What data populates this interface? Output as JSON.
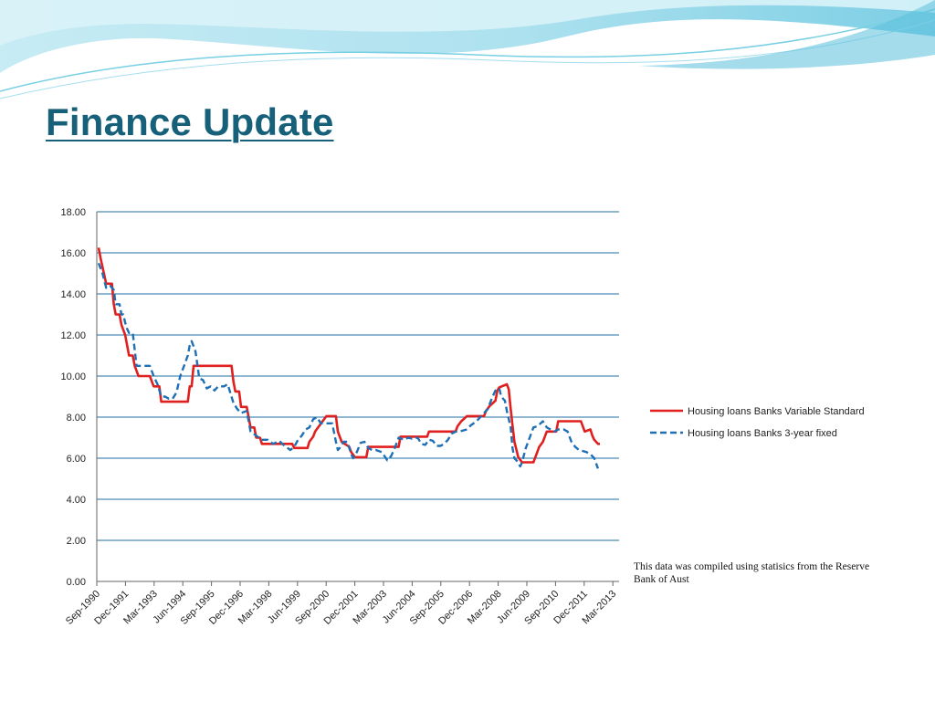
{
  "slide": {
    "title": "Finance Update",
    "note": "This data was compiled using statisics from the Reserve Bank of Aust"
  },
  "colors": {
    "title": "#17607a",
    "gridline": "#1f6fa6",
    "series_variable": "#e0201e",
    "series_fixed": "#1f6fb5",
    "banner_light": "#c8eef6",
    "banner_mid": "#7fd4e8"
  },
  "chart_data": {
    "type": "line",
    "title": "",
    "xlabel": "",
    "ylabel": "",
    "ylim": [
      0,
      18
    ],
    "yticks": [
      "0.00",
      "2.00",
      "4.00",
      "6.00",
      "8.00",
      "10.00",
      "12.00",
      "14.00",
      "16.00",
      "18.00"
    ],
    "xticks": [
      "Sep-1990",
      "Dec-1991",
      "Mar-1993",
      "Jun-1994",
      "Sep-1995",
      "Dec-1996",
      "Mar-1998",
      "Jun-1999",
      "Sep-2000",
      "Dec-2001",
      "Mar-2003",
      "Jun-2004",
      "Sep-2005",
      "Dec-2006",
      "Mar-2008",
      "Jun-2009",
      "Sep-2010",
      "Dec-2011",
      "Mar-2013"
    ],
    "grid": "horizontal",
    "legend_position": "right",
    "x_period": "monthly, Sep-1990 to Sep-2012",
    "series": [
      {
        "name": "Housing loans Banks Variable Standard",
        "style": "solid",
        "points": [
          [
            "1990-09",
            16.25
          ],
          [
            "1990-10",
            15.75
          ],
          [
            "1991-01",
            14.5
          ],
          [
            "1991-04",
            14.5
          ],
          [
            "1991-05",
            13.5
          ],
          [
            "1991-06",
            13.0
          ],
          [
            "1991-08",
            13.0
          ],
          [
            "1991-09",
            12.5
          ],
          [
            "1991-11",
            12.0
          ],
          [
            "1992-01",
            11.0
          ],
          [
            "1992-03",
            11.0
          ],
          [
            "1992-04",
            10.5
          ],
          [
            "1992-06",
            10.0
          ],
          [
            "1992-12",
            10.0
          ],
          [
            "1993-02",
            9.5
          ],
          [
            "1993-05",
            9.5
          ],
          [
            "1993-06",
            8.75
          ],
          [
            "1994-08",
            8.75
          ],
          [
            "1994-09",
            9.5
          ],
          [
            "1994-10",
            9.5
          ],
          [
            "1994-11",
            10.5
          ],
          [
            "1996-07",
            10.5
          ],
          [
            "1996-08",
            9.75
          ],
          [
            "1996-09",
            9.25
          ],
          [
            "1996-11",
            9.25
          ],
          [
            "1996-12",
            8.5
          ],
          [
            "1997-03",
            8.5
          ],
          [
            "1997-05",
            7.5
          ],
          [
            "1997-07",
            7.5
          ],
          [
            "1997-08",
            7.0
          ],
          [
            "1997-10",
            7.0
          ],
          [
            "1997-11",
            6.7
          ],
          [
            "1999-03",
            6.7
          ],
          [
            "1999-04",
            6.5
          ],
          [
            "1999-11",
            6.5
          ],
          [
            "1999-12",
            6.8
          ],
          [
            "2000-02",
            7.05
          ],
          [
            "2000-03",
            7.3
          ],
          [
            "2000-05",
            7.55
          ],
          [
            "2000-09",
            8.05
          ],
          [
            "2001-02",
            8.05
          ],
          [
            "2001-03",
            7.3
          ],
          [
            "2001-05",
            6.8
          ],
          [
            "2001-09",
            6.55
          ],
          [
            "2001-10",
            6.3
          ],
          [
            "2001-12",
            6.05
          ],
          [
            "2002-06",
            6.05
          ],
          [
            "2002-07",
            6.55
          ],
          [
            "2003-11",
            6.55
          ],
          [
            "2003-12",
            7.05
          ],
          [
            "2005-02",
            7.05
          ],
          [
            "2005-03",
            7.3
          ],
          [
            "2006-05",
            7.3
          ],
          [
            "2006-06",
            7.55
          ],
          [
            "2006-08",
            7.8
          ],
          [
            "2006-11",
            8.05
          ],
          [
            "2007-08",
            8.05
          ],
          [
            "2007-09",
            8.3
          ],
          [
            "2007-11",
            8.55
          ],
          [
            "2008-02",
            8.8
          ],
          [
            "2008-03",
            9.3
          ],
          [
            "2008-04",
            9.45
          ],
          [
            "2008-08",
            9.6
          ],
          [
            "2008-09",
            9.35
          ],
          [
            "2008-10",
            8.4
          ],
          [
            "2008-11",
            7.6
          ],
          [
            "2008-12",
            6.8
          ],
          [
            "2009-02",
            6.05
          ],
          [
            "2009-04",
            5.8
          ],
          [
            "2009-10",
            5.8
          ],
          [
            "2009-11",
            6.05
          ],
          [
            "2009-12",
            6.3
          ],
          [
            "2010-01",
            6.55
          ],
          [
            "2010-03",
            6.8
          ],
          [
            "2010-04",
            7.05
          ],
          [
            "2010-05",
            7.3
          ],
          [
            "2010-10",
            7.3
          ],
          [
            "2010-11",
            7.8
          ],
          [
            "2011-11",
            7.8
          ],
          [
            "2011-12",
            7.55
          ],
          [
            "2012-01",
            7.3
          ],
          [
            "2012-04",
            7.4
          ],
          [
            "2012-05",
            7.1
          ],
          [
            "2012-06",
            6.9
          ],
          [
            "2012-08",
            6.7
          ],
          [
            "2012-09",
            6.7
          ]
        ]
      },
      {
        "name": "Housing loans Banks 3-year fixed",
        "style": "dashed",
        "points": [
          [
            "1990-09",
            15.5
          ],
          [
            "1990-11",
            15.0
          ],
          [
            "1991-01",
            14.3
          ],
          [
            "1991-03",
            14.4
          ],
          [
            "1991-05",
            14.2
          ],
          [
            "1991-06",
            13.5
          ],
          [
            "1991-08",
            13.5
          ],
          [
            "1991-09",
            13.0
          ],
          [
            "1991-10",
            13.0
          ],
          [
            "1991-11",
            12.6
          ],
          [
            "1991-12",
            12.3
          ],
          [
            "1992-01",
            12.1
          ],
          [
            "1992-03",
            12.1
          ],
          [
            "1992-05",
            10.5
          ],
          [
            "1992-07",
            10.5
          ],
          [
            "1992-09",
            10.5
          ],
          [
            "1992-12",
            10.5
          ],
          [
            "1993-02",
            10.0
          ],
          [
            "1993-04",
            9.6
          ],
          [
            "1993-06",
            9.0
          ],
          [
            "1993-08",
            9.0
          ],
          [
            "1993-10",
            8.9
          ],
          [
            "1993-12",
            8.9
          ],
          [
            "1994-02",
            9.2
          ],
          [
            "1994-04",
            10.0
          ],
          [
            "1994-06",
            10.5
          ],
          [
            "1994-08",
            11.0
          ],
          [
            "1994-09",
            11.5
          ],
          [
            "1994-10",
            11.7
          ],
          [
            "1994-12",
            11.2
          ],
          [
            "1995-02",
            9.9
          ],
          [
            "1995-04",
            9.8
          ],
          [
            "1995-06",
            9.4
          ],
          [
            "1995-08",
            9.5
          ],
          [
            "1995-10",
            9.3
          ],
          [
            "1995-12",
            9.5
          ],
          [
            "1996-03",
            9.5
          ],
          [
            "1996-05",
            9.6
          ],
          [
            "1996-08",
            8.7
          ],
          [
            "1996-10",
            8.4
          ],
          [
            "1996-12",
            8.2
          ],
          [
            "1997-03",
            8.3
          ],
          [
            "1997-05",
            7.3
          ],
          [
            "1997-08",
            7.1
          ],
          [
            "1997-11",
            6.9
          ],
          [
            "1998-02",
            6.9
          ],
          [
            "1998-05",
            6.7
          ],
          [
            "1998-08",
            6.85
          ],
          [
            "1998-11",
            6.6
          ],
          [
            "1999-02",
            6.4
          ],
          [
            "1999-04",
            6.55
          ],
          [
            "1999-06",
            6.9
          ],
          [
            "1999-08",
            7.1
          ],
          [
            "1999-10",
            7.4
          ],
          [
            "1999-12",
            7.5
          ],
          [
            "2000-02",
            7.9
          ],
          [
            "2000-04",
            8.0
          ],
          [
            "2000-06",
            7.7
          ],
          [
            "2000-09",
            7.7
          ],
          [
            "2000-12",
            7.7
          ],
          [
            "2001-02",
            6.8
          ],
          [
            "2001-03",
            6.4
          ],
          [
            "2001-04",
            6.5
          ],
          [
            "2001-06",
            6.8
          ],
          [
            "2001-08",
            6.8
          ],
          [
            "2001-10",
            6.2
          ],
          [
            "2001-11",
            6.0
          ],
          [
            "2002-01",
            6.3
          ],
          [
            "2002-03",
            6.75
          ],
          [
            "2002-05",
            6.8
          ],
          [
            "2002-07",
            6.5
          ],
          [
            "2002-09",
            6.4
          ],
          [
            "2002-11",
            6.4
          ],
          [
            "2003-02",
            6.3
          ],
          [
            "2003-04",
            6.05
          ],
          [
            "2003-05",
            5.9
          ],
          [
            "2003-07",
            6.1
          ],
          [
            "2003-09",
            6.5
          ],
          [
            "2003-11",
            7.0
          ],
          [
            "2004-02",
            6.9
          ],
          [
            "2004-04",
            7.0
          ],
          [
            "2004-06",
            6.95
          ],
          [
            "2004-09",
            7.0
          ],
          [
            "2004-11",
            6.7
          ],
          [
            "2005-01",
            6.65
          ],
          [
            "2005-03",
            6.9
          ],
          [
            "2005-05",
            6.85
          ],
          [
            "2005-07",
            6.6
          ],
          [
            "2005-09",
            6.6
          ],
          [
            "2005-11",
            6.7
          ],
          [
            "2006-01",
            6.9
          ],
          [
            "2006-03",
            7.2
          ],
          [
            "2006-05",
            7.3
          ],
          [
            "2006-07",
            7.3
          ],
          [
            "2006-09",
            7.35
          ],
          [
            "2006-11",
            7.4
          ],
          [
            "2007-01",
            7.6
          ],
          [
            "2007-04",
            7.8
          ],
          [
            "2007-07",
            8.1
          ],
          [
            "2007-10",
            8.4
          ],
          [
            "2007-12",
            8.9
          ],
          [
            "2008-02",
            9.3
          ],
          [
            "2008-04",
            9.4
          ],
          [
            "2008-05",
            9.0
          ],
          [
            "2008-07",
            8.8
          ],
          [
            "2008-08",
            8.3
          ],
          [
            "2008-10",
            7.5
          ],
          [
            "2008-11",
            6.5
          ],
          [
            "2008-12",
            6.0
          ],
          [
            "2009-02",
            5.8
          ],
          [
            "2009-03",
            5.6
          ],
          [
            "2009-04",
            5.8
          ],
          [
            "2009-06",
            6.5
          ],
          [
            "2009-08",
            7.0
          ],
          [
            "2009-10",
            7.5
          ],
          [
            "2009-12",
            7.55
          ],
          [
            "2010-03",
            7.8
          ],
          [
            "2010-05",
            7.5
          ],
          [
            "2010-07",
            7.4
          ],
          [
            "2010-09",
            7.3
          ],
          [
            "2010-11",
            7.4
          ],
          [
            "2011-02",
            7.4
          ],
          [
            "2011-04",
            7.3
          ],
          [
            "2011-06",
            6.8
          ],
          [
            "2011-08",
            6.55
          ],
          [
            "2011-10",
            6.4
          ],
          [
            "2011-12",
            6.35
          ],
          [
            "2012-02",
            6.3
          ],
          [
            "2012-04",
            6.2
          ],
          [
            "2012-06",
            6.0
          ],
          [
            "2012-08",
            5.5
          ]
        ]
      }
    ]
  }
}
